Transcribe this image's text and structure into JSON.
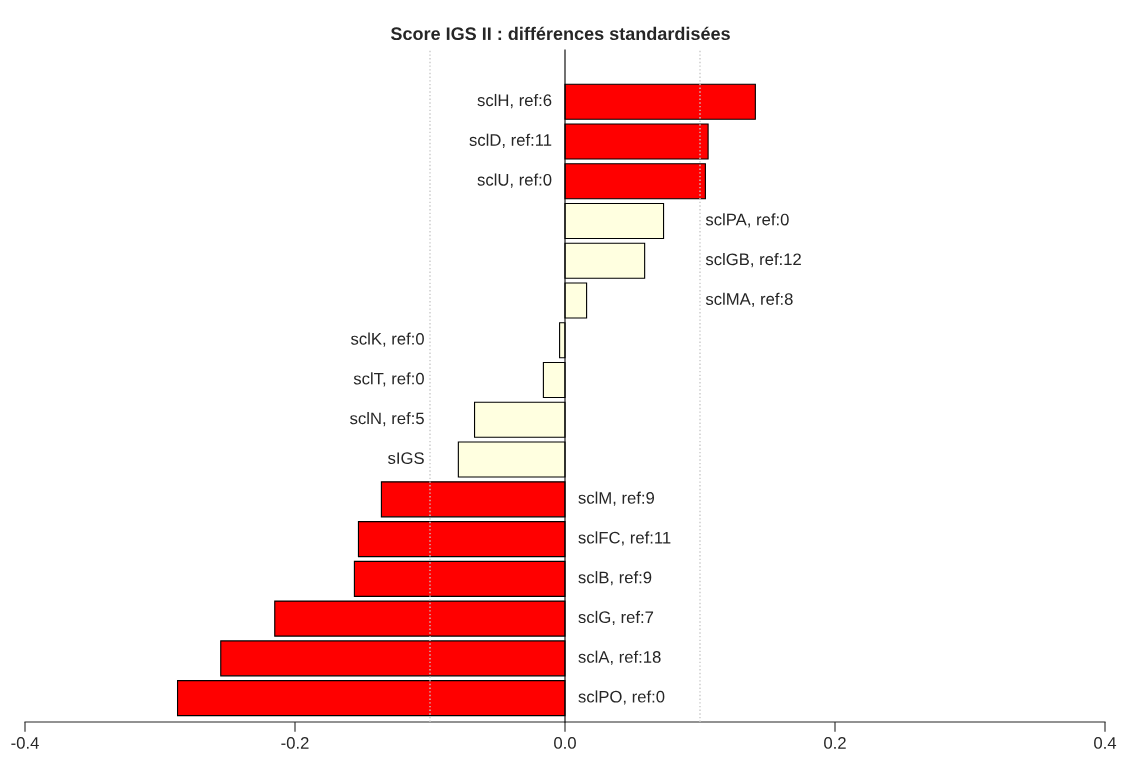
{
  "chart_data": {
    "type": "bar",
    "orientation": "horizontal",
    "title": "Score IGS II : différences standardisées",
    "categories": [
      "sclH, ref:6",
      "sclD, ref:11",
      "sclU, ref:0",
      "sclPA, ref:0",
      "sclGB, ref:12",
      "sclMA, ref:8",
      "sclK, ref:0",
      "sclT, ref:0",
      "sclN, ref:5",
      "sIGS",
      "sclM, ref:9",
      "sclFC, ref:11",
      "sclB, ref:9",
      "sclG, ref:7",
      "sclA, ref:18",
      "sclPO, ref:0"
    ],
    "values": [
      0.141,
      0.106,
      0.104,
      0.073,
      0.059,
      0.016,
      -0.004,
      -0.016,
      -0.067,
      -0.079,
      -0.136,
      -0.153,
      -0.156,
      -0.215,
      -0.255,
      -0.287
    ],
    "colors": [
      "#ff0000",
      "#ff0000",
      "#ff0000",
      "#ffffe0",
      "#ffffe0",
      "#ffffe0",
      "#ffffe0",
      "#ffffe0",
      "#ffffe0",
      "#ffffe0",
      "#ff0000",
      "#ff0000",
      "#ff0000",
      "#ff0000",
      "#ff0000",
      "#ff0000"
    ],
    "xlim": [
      -0.4,
      0.4
    ],
    "xticks": [
      {
        "value": -0.4,
        "label": "-0.4"
      },
      {
        "value": -0.2,
        "label": "-0.2"
      },
      {
        "value": 0,
        "label": "0.0"
      },
      {
        "value": 0.2,
        "label": "0.2"
      },
      {
        "value": 0.4,
        "label": "0.4"
      }
    ],
    "ref_lines": [
      {
        "axis": "x",
        "value": -0.1,
        "color": "#c8c8c8",
        "line_style": "dotted"
      },
      {
        "axis": "x",
        "value": 0.1,
        "color": "#c8c8c8",
        "line_style": "dotted"
      }
    ],
    "tick_labels": "x",
    "grid": false,
    "legend": false
  }
}
